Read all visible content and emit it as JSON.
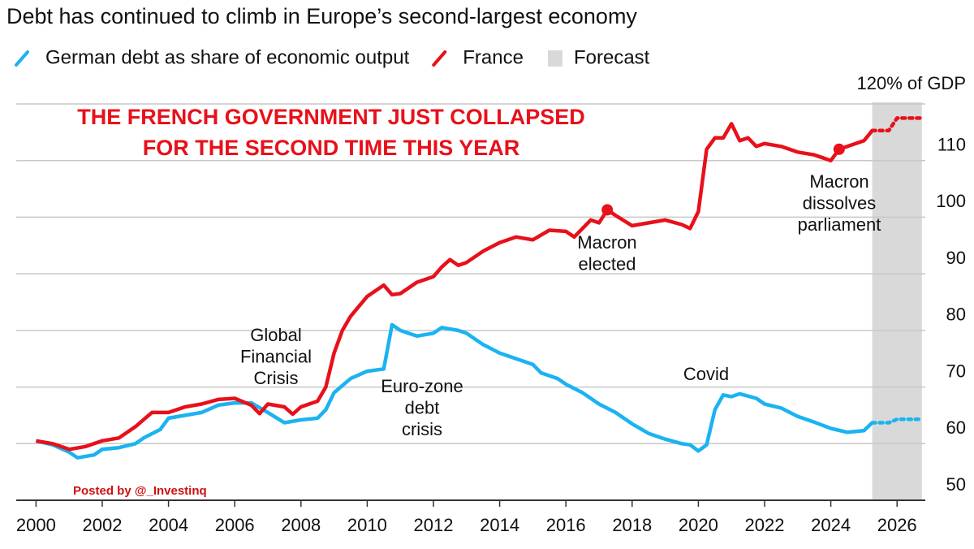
{
  "chart_data": {
    "type": "line",
    "title": "Debt has continued to climb in Europe’s second-largest economy",
    "overlay": [
      "THE FRENCH GOVERNMENT JUST COLLAPSED",
      "FOR THE SECOND TIME THIS YEAR"
    ],
    "credit": "Posted by @_Investinq",
    "forecast": {
      "name": "Forecast",
      "span": [
        2025.25,
        2026.75
      ],
      "color": "#d9d9d9"
    },
    "annotations": [
      [
        "Global",
        "Financial",
        "Crisis"
      ],
      [
        "Euro-zone",
        "debt",
        "crisis"
      ],
      [
        "Macron",
        "elected"
      ],
      [
        "Macron",
        "dissolves",
        "parliament"
      ],
      [
        "Covid"
      ]
    ],
    "xlim": [
      1999.5,
      2027
    ],
    "xticks": [
      2000,
      2002,
      2004,
      2006,
      2008,
      2010,
      2012,
      2014,
      2016,
      2018,
      2020,
      2022,
      2024,
      2026
    ],
    "ylim": [
      50,
      120
    ],
    "yticks": [
      50,
      60,
      70,
      80,
      90,
      100,
      110,
      {
        "value": 120,
        "label": "120% of GDP"
      }
    ],
    "grid": true,
    "series": [
      {
        "name": "German debt as share of economic output",
        "color": "#1bb3f0",
        "x": [
          2000,
          2000.5,
          2001,
          2001.25,
          2001.75,
          2002,
          2002.5,
          2003,
          2003.25,
          2003.75,
          2004,
          2004.5,
          2005,
          2005.5,
          2006,
          2006.5,
          2007,
          2007.5,
          2008,
          2008.5,
          2008.75,
          2009,
          2009.5,
          2010,
          2010.5,
          2010.75,
          2011,
          2011.5,
          2012,
          2012.25,
          2012.75,
          2013,
          2013.5,
          2014,
          2014.5,
          2015,
          2015.25,
          2015.75,
          2016,
          2016.5,
          2017,
          2017.5,
          2018,
          2018.5,
          2019,
          2019.5,
          2019.75,
          2020,
          2020.25,
          2020.5,
          2020.75,
          2021,
          2021.25,
          2021.75,
          2022,
          2022.5,
          2023,
          2023.5,
          2024,
          2024.5,
          2025,
          2025.25,
          2025.75,
          2026,
          2026.75
        ],
        "values": [
          60.5,
          59.8,
          58.5,
          57.5,
          58,
          59,
          59.3,
          60,
          61,
          62.5,
          64.5,
          65,
          65.5,
          66.8,
          67.2,
          67.2,
          65.5,
          63.7,
          64.2,
          64.5,
          66,
          69,
          71.5,
          72.8,
          73.2,
          81,
          80,
          79,
          79.5,
          80.5,
          80,
          79.5,
          77.5,
          76,
          75,
          74,
          72.5,
          71.5,
          70.5,
          69,
          67,
          65.5,
          63.5,
          61.8,
          60.8,
          60,
          59.8,
          58.7,
          59.8,
          66,
          68.6,
          68.3,
          68.8,
          68,
          67,
          66.3,
          64.8,
          63.8,
          62.7,
          62,
          62.3,
          63.7,
          63.7,
          64.3,
          64.3
        ]
      },
      {
        "name": "France",
        "color": "#e8101a",
        "markers": [
          2017.25,
          2024.25
        ],
        "x": [
          2000,
          2000.5,
          2001,
          2001.5,
          2002,
          2002.5,
          2003,
          2003.5,
          2004,
          2004.5,
          2005,
          2005.5,
          2006,
          2006.5,
          2006.75,
          2007,
          2007.5,
          2007.75,
          2008,
          2008.5,
          2008.75,
          2009,
          2009.25,
          2009.5,
          2010,
          2010.5,
          2010.75,
          2011,
          2011.5,
          2012,
          2012.25,
          2012.5,
          2012.75,
          2013,
          2013.5,
          2014,
          2014.5,
          2015,
          2015.5,
          2016,
          2016.25,
          2016.75,
          2017,
          2017.25,
          2017.5,
          2018,
          2018.5,
          2019,
          2019.5,
          2019.75,
          2020,
          2020.25,
          2020.5,
          2020.75,
          2021,
          2021.25,
          2021.5,
          2021.75,
          2022,
          2022.5,
          2023,
          2023.5,
          2024,
          2024.25,
          2024.5,
          2025,
          2025.25,
          2025.75,
          2026,
          2026.75
        ],
        "values": [
          60.5,
          60,
          59,
          59.5,
          60.5,
          61,
          63,
          65.5,
          65.5,
          66.5,
          67,
          67.8,
          68,
          66.8,
          65.3,
          67,
          66.5,
          65.2,
          66.5,
          67.5,
          70,
          76,
          80,
          82.5,
          86,
          88,
          86.3,
          86.5,
          88.5,
          89.5,
          91.2,
          92.5,
          91.5,
          92,
          94,
          95.5,
          96.5,
          96,
          97.7,
          97.5,
          96.5,
          99.5,
          99,
          101.3,
          100.3,
          98.5,
          99,
          99.5,
          98.7,
          98,
          101,
          112,
          114,
          114,
          116.5,
          113.5,
          114,
          112.5,
          113,
          112.5,
          111.5,
          111,
          110,
          112,
          112.5,
          113.5,
          115.3,
          115.3,
          117.5,
          117.5
        ]
      }
    ]
  }
}
